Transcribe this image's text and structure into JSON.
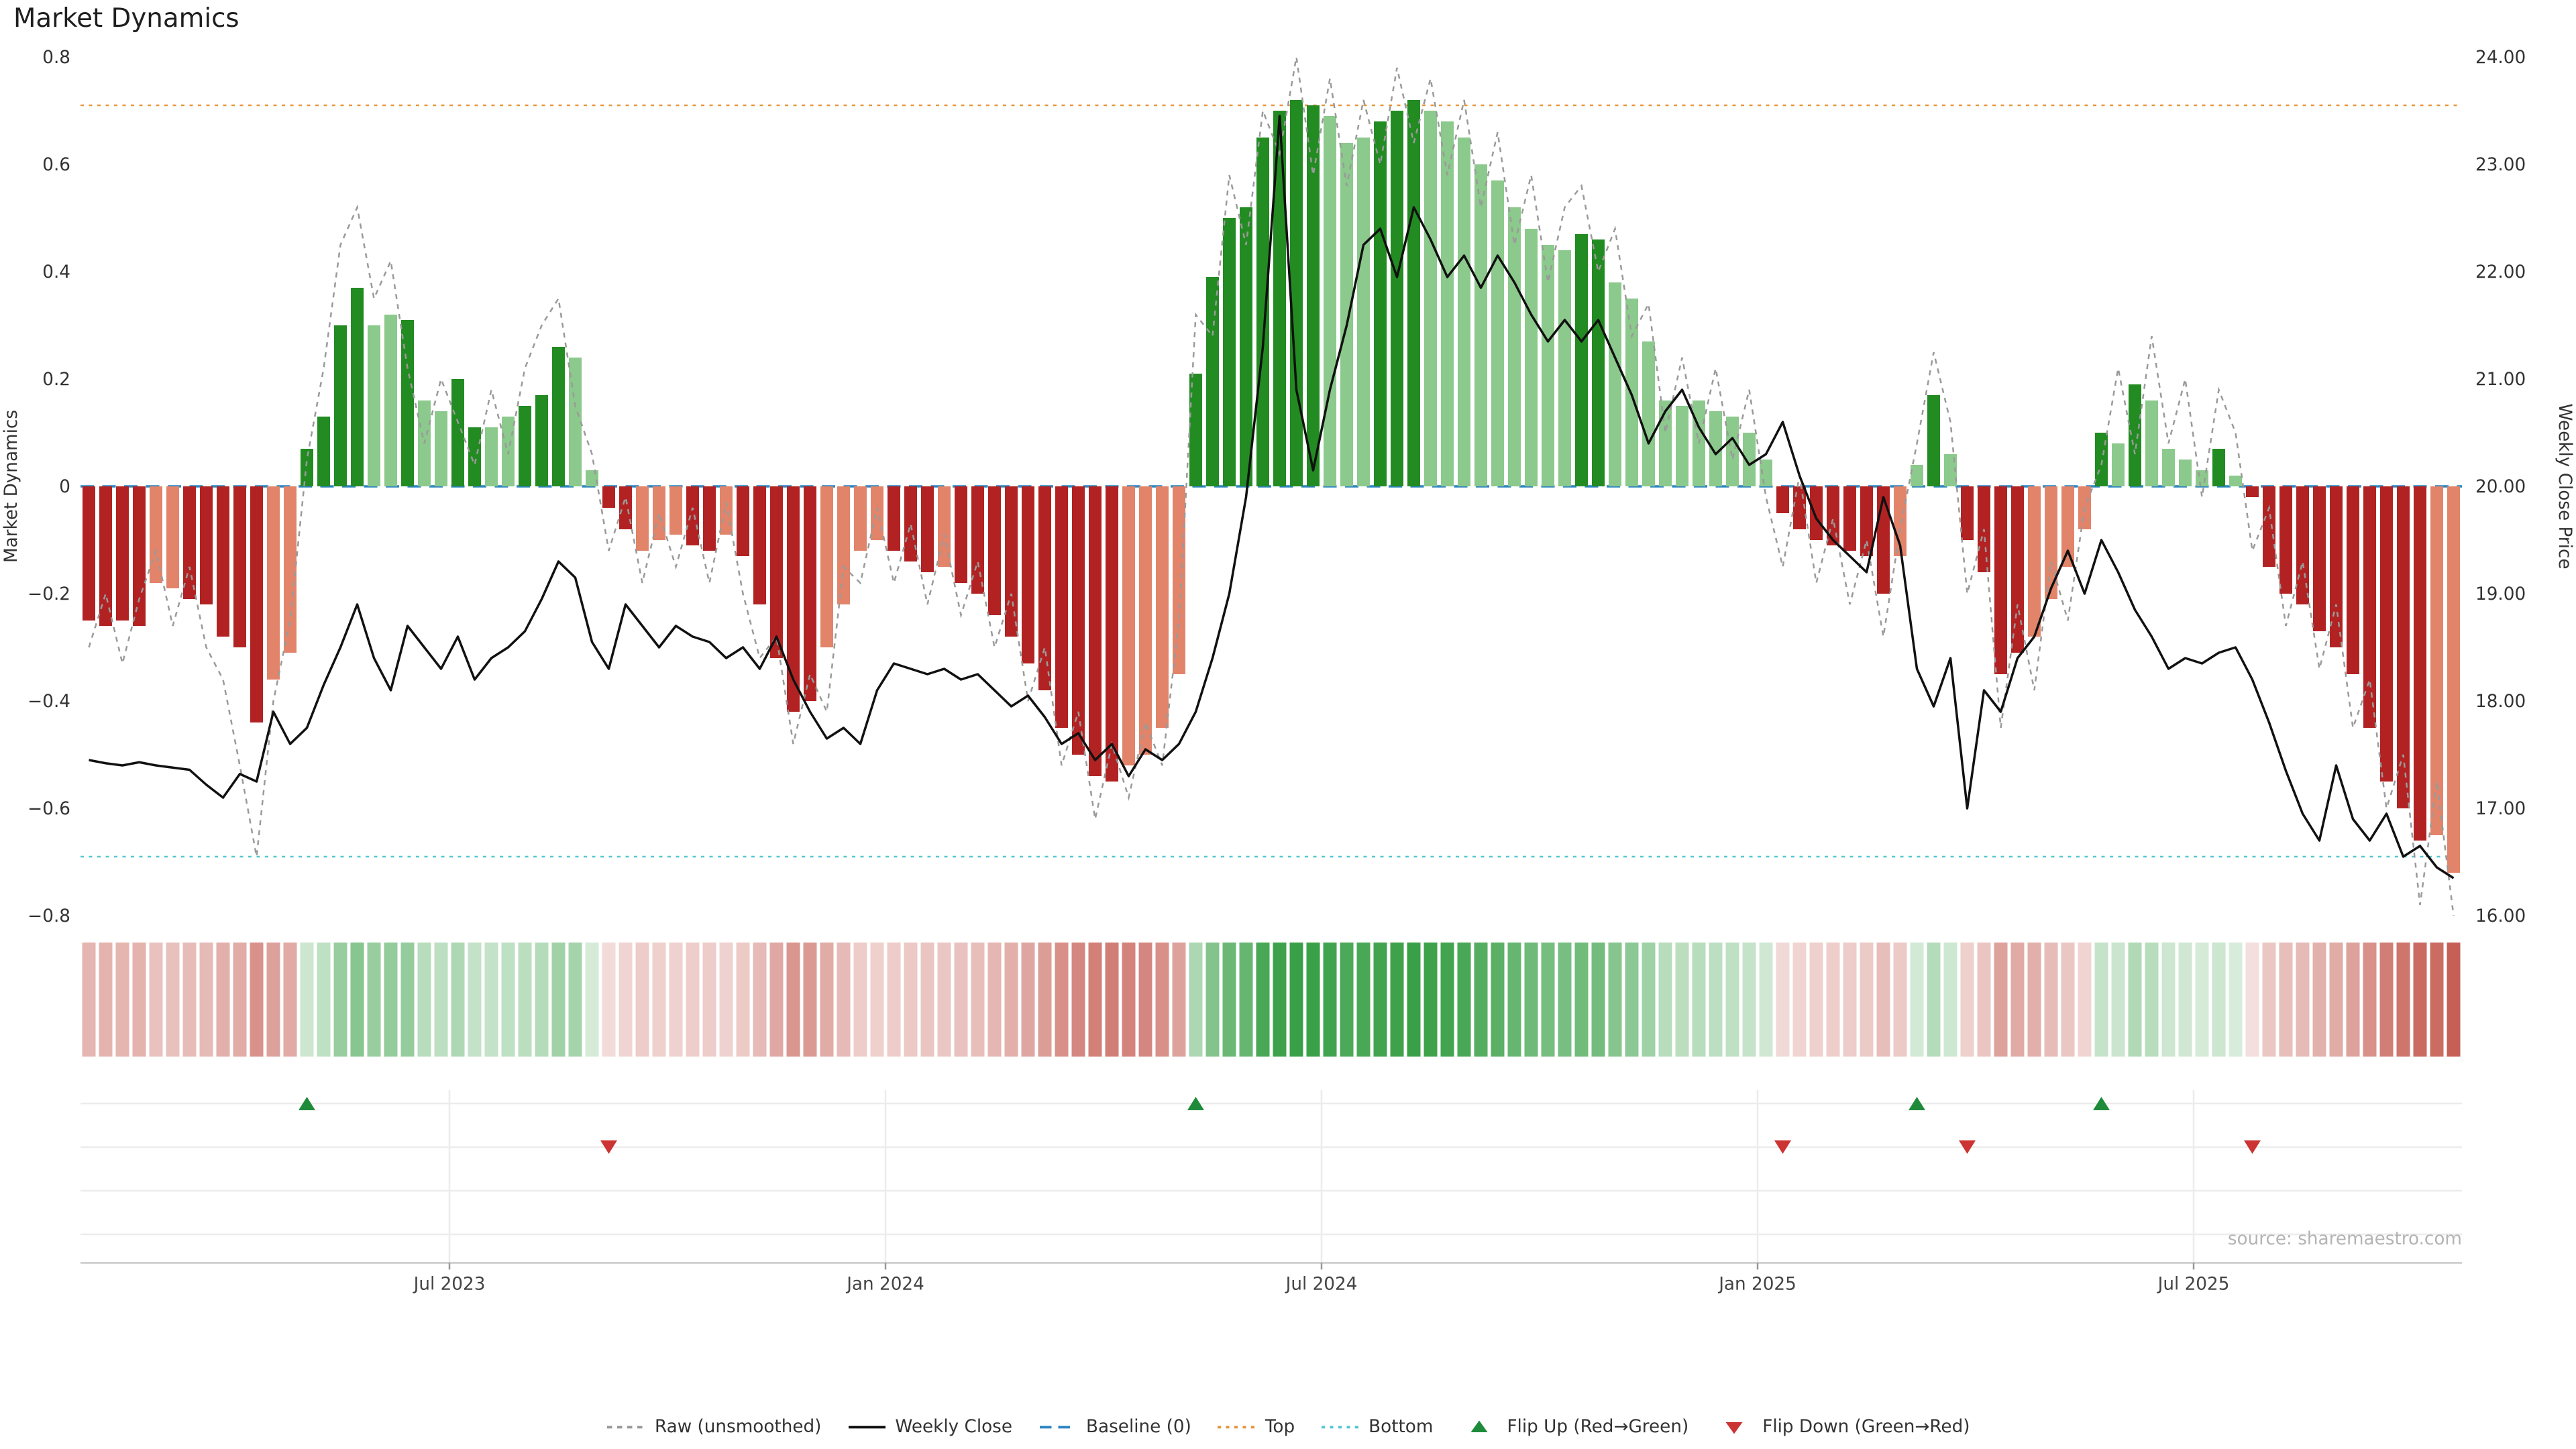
{
  "title": "Market Dynamics",
  "source": "source: sharemaestro.com",
  "axes": {
    "left_title": "Market Dynamics",
    "right_title": "Weekly Close Price",
    "left_ticks": [
      "0.8",
      "0.6",
      "0.4",
      "0.2",
      "0",
      "−0.2",
      "−0.4",
      "−0.6",
      "−0.8"
    ],
    "left_tick_values": [
      0.8,
      0.6,
      0.4,
      0.2,
      0,
      -0.2,
      -0.4,
      -0.6,
      -0.8
    ],
    "right_ticks": [
      "24.00",
      "23.00",
      "22.00",
      "21.00",
      "20.00",
      "19.00",
      "18.00",
      "17.00",
      "16.00"
    ],
    "right_tick_values": [
      24,
      23,
      22,
      21,
      20,
      19,
      18,
      17,
      16
    ],
    "x_ticks": [
      {
        "label": "Jul 2023",
        "index": 22
      },
      {
        "label": "Jan 2024",
        "index": 48
      },
      {
        "label": "Jul 2024",
        "index": 74
      },
      {
        "label": "Jan 2025",
        "index": 100
      },
      {
        "label": "Jul 2025",
        "index": 126
      }
    ]
  },
  "chart_data": {
    "type": "combo",
    "title": "Market Dynamics",
    "n_points": 142,
    "x_axis": {
      "unit": "weekly",
      "tick_labels": [
        "Jul 2023",
        "Jan 2024",
        "Jul 2024",
        "Jan 2025",
        "Jul 2025"
      ],
      "tick_indices": [
        22,
        48,
        74,
        100,
        126
      ]
    },
    "left_axis": {
      "label": "Market Dynamics",
      "range": [
        -0.8,
        0.8
      ]
    },
    "right_axis": {
      "label": "Weekly Close Price",
      "range": [
        16,
        24
      ]
    },
    "reference_lines": {
      "baseline": 0,
      "top": 0.71,
      "bottom": -0.69
    },
    "markers": {
      "flip_up_indices": [
        13,
        66,
        109,
        120
      ],
      "flip_down_indices": [
        31,
        101,
        112,
        129
      ]
    },
    "series": [
      {
        "name": "Market Dynamics (smoothed bars)",
        "type": "bar",
        "axis": "left",
        "values": [
          -0.25,
          -0.26,
          -0.25,
          -0.26,
          -0.18,
          -0.19,
          -0.21,
          -0.22,
          -0.28,
          -0.3,
          -0.44,
          -0.36,
          -0.31,
          0.07,
          0.13,
          0.3,
          0.37,
          0.3,
          0.32,
          0.31,
          0.16,
          0.14,
          0.2,
          0.11,
          0.11,
          0.13,
          0.15,
          0.17,
          0.26,
          0.24,
          0.03,
          -0.04,
          -0.08,
          -0.12,
          -0.1,
          -0.09,
          -0.11,
          -0.12,
          -0.09,
          -0.13,
          -0.22,
          -0.32,
          -0.42,
          -0.4,
          -0.3,
          -0.22,
          -0.12,
          -0.1,
          -0.12,
          -0.14,
          -0.16,
          -0.15,
          -0.18,
          -0.2,
          -0.24,
          -0.28,
          -0.33,
          -0.38,
          -0.45,
          -0.5,
          -0.54,
          -0.55,
          -0.52,
          -0.5,
          -0.45,
          -0.35,
          0.21,
          0.39,
          0.5,
          0.52,
          0.65,
          0.7,
          0.72,
          0.71,
          0.69,
          0.64,
          0.65,
          0.68,
          0.7,
          0.72,
          0.7,
          0.68,
          0.65,
          0.6,
          0.57,
          0.52,
          0.48,
          0.45,
          0.44,
          0.47,
          0.46,
          0.38,
          0.35,
          0.27,
          0.16,
          0.15,
          0.16,
          0.14,
          0.13,
          0.1,
          0.05,
          -0.05,
          -0.08,
          -0.1,
          -0.11,
          -0.12,
          -0.13,
          -0.2,
          -0.13,
          0.04,
          0.17,
          0.06,
          -0.1,
          -0.16,
          -0.35,
          -0.31,
          -0.28,
          -0.21,
          -0.15,
          -0.08,
          0.1,
          0.08,
          0.19,
          0.16,
          0.07,
          0.05,
          0.03,
          0.07,
          0.02,
          -0.02,
          -0.15,
          -0.2,
          -0.22,
          -0.27,
          -0.3,
          -0.35,
          -0.45,
          -0.55,
          -0.6,
          -0.66,
          -0.65,
          -0.72
        ],
        "shades": [
          "ddddlldddd",
          "dllddddlld",
          "llddlldddl",
          "lddlllddld",
          "ddddlllldd",
          "dldddddddd",
          "ddlllldddd",
          "ddddlllddd",
          "llllllllld",
          "dlllllllll",
          "ldddddddll",
          "dlddddllll",
          "dldlllldld",
          "ddddddddddll"
        ]
      },
      {
        "name": "Raw (unsmoothed)",
        "type": "line",
        "style": "dashed",
        "axis": "left",
        "values": [
          -0.3,
          -0.2,
          -0.33,
          -0.21,
          -0.12,
          -0.26,
          -0.15,
          -0.3,
          -0.36,
          -0.52,
          -0.69,
          -0.4,
          -0.25,
          0.05,
          0.22,
          0.45,
          0.52,
          0.35,
          0.42,
          0.22,
          0.08,
          0.2,
          0.12,
          0.04,
          0.18,
          0.06,
          0.22,
          0.3,
          0.35,
          0.15,
          0.06,
          -0.12,
          -0.02,
          -0.18,
          -0.05,
          -0.15,
          -0.04,
          -0.18,
          -0.03,
          -0.2,
          -0.32,
          -0.28,
          -0.48,
          -0.35,
          -0.42,
          -0.15,
          -0.18,
          -0.04,
          -0.18,
          -0.07,
          -0.22,
          -0.09,
          -0.24,
          -0.14,
          -0.3,
          -0.2,
          -0.4,
          -0.3,
          -0.52,
          -0.42,
          -0.62,
          -0.48,
          -0.58,
          -0.44,
          -0.52,
          -0.25,
          0.32,
          0.28,
          0.58,
          0.45,
          0.7,
          0.62,
          0.8,
          0.58,
          0.76,
          0.56,
          0.72,
          0.6,
          0.78,
          0.64,
          0.76,
          0.58,
          0.72,
          0.52,
          0.66,
          0.45,
          0.58,
          0.38,
          0.52,
          0.56,
          0.4,
          0.48,
          0.28,
          0.34,
          0.1,
          0.24,
          0.08,
          0.22,
          0.05,
          0.18,
          -0.02,
          -0.15,
          0.02,
          -0.18,
          -0.06,
          -0.22,
          -0.1,
          -0.28,
          -0.08,
          0.08,
          0.25,
          0.12,
          -0.2,
          -0.08,
          -0.45,
          -0.22,
          -0.38,
          -0.14,
          -0.25,
          -0.04,
          0.04,
          0.22,
          0.06,
          0.28,
          0.08,
          0.2,
          -0.02,
          0.18,
          0.1,
          -0.12,
          -0.04,
          -0.26,
          -0.14,
          -0.34,
          -0.22,
          -0.45,
          -0.36,
          -0.6,
          -0.5,
          -0.78,
          -0.55,
          -0.8
        ]
      },
      {
        "name": "Weekly Close",
        "type": "line",
        "axis": "right",
        "values": [
          17.45,
          17.42,
          17.4,
          17.43,
          17.4,
          17.38,
          17.36,
          17.22,
          17.1,
          17.32,
          17.25,
          17.9,
          17.6,
          17.75,
          18.15,
          18.5,
          18.9,
          18.4,
          18.1,
          18.7,
          18.5,
          18.3,
          18.6,
          18.2,
          18.4,
          18.5,
          18.65,
          18.95,
          19.3,
          19.15,
          18.55,
          18.3,
          18.9,
          18.7,
          18.5,
          18.7,
          18.6,
          18.55,
          18.4,
          18.5,
          18.3,
          18.6,
          18.2,
          17.9,
          17.65,
          17.75,
          17.6,
          18.1,
          18.35,
          18.3,
          18.25,
          18.3,
          18.2,
          18.25,
          18.1,
          17.95,
          18.05,
          17.85,
          17.6,
          17.7,
          17.45,
          17.6,
          17.3,
          17.55,
          17.45,
          17.6,
          17.9,
          18.4,
          19.0,
          19.9,
          21.3,
          23.45,
          20.9,
          20.15,
          20.9,
          21.5,
          22.25,
          22.4,
          21.95,
          22.6,
          22.3,
          21.95,
          22.15,
          21.85,
          22.15,
          21.9,
          21.6,
          21.35,
          21.55,
          21.35,
          21.55,
          21.2,
          20.85,
          20.4,
          20.7,
          20.9,
          20.55,
          20.3,
          20.45,
          20.2,
          20.3,
          20.6,
          20.1,
          19.7,
          19.5,
          19.35,
          19.2,
          19.9,
          19.45,
          18.3,
          17.95,
          18.4,
          17.0,
          18.1,
          17.9,
          18.4,
          18.6,
          19.05,
          19.4,
          19.0,
          19.5,
          19.2,
          18.85,
          18.6,
          18.3,
          18.4,
          18.35,
          18.45,
          18.5,
          18.2,
          17.8,
          17.35,
          16.95,
          16.7,
          17.4,
          16.9,
          16.7,
          16.95,
          16.55,
          16.65,
          16.45,
          16.35
        ]
      }
    ]
  },
  "colors": {
    "bar_pos_dark": "#228b22",
    "bar_pos_light": "#8cc98c",
    "bar_neg_dark": "#b22222",
    "bar_neg_light": "#e2846a",
    "raw_line": "#9a9a9a",
    "price_line": "#111111",
    "baseline": "#2e86c1",
    "top_line": "#e8973f",
    "bottom_line": "#56c7d1",
    "flip_up": "#1e8b3a",
    "flip_down": "#cc3333",
    "heat_pos": "#39a047",
    "heat_neg": "#c65f55",
    "grid": "#ececec",
    "axis_line": "#c9c9c9",
    "tick_text": "#444444"
  },
  "legend": {
    "items": [
      {
        "label": "Raw (unsmoothed)",
        "glyph": "raw-dashed-line",
        "color": "#9a9a9a",
        "dash": "3,3"
      },
      {
        "label": "Weekly Close",
        "glyph": "weekly-close-line",
        "color": "#111111",
        "dash": ""
      },
      {
        "label": "Baseline (0)",
        "glyph": "baseline-dashed-line",
        "color": "#2e86c1",
        "dash": "7,4"
      },
      {
        "label": "Top",
        "glyph": "top-dotted-line",
        "color": "#e8973f",
        "dash": "2,3"
      },
      {
        "label": "Bottom",
        "glyph": "bottom-dotted-line",
        "color": "#56c7d1",
        "dash": "2,3"
      },
      {
        "label": "Flip Up (Red→Green)",
        "glyph": "flip-up-triangle",
        "color": "#1e8b3a",
        "dash": null
      },
      {
        "label": "Flip Down (Green→Red)",
        "glyph": "flip-down-triangle",
        "color": "#cc3333",
        "dash": null
      }
    ]
  }
}
